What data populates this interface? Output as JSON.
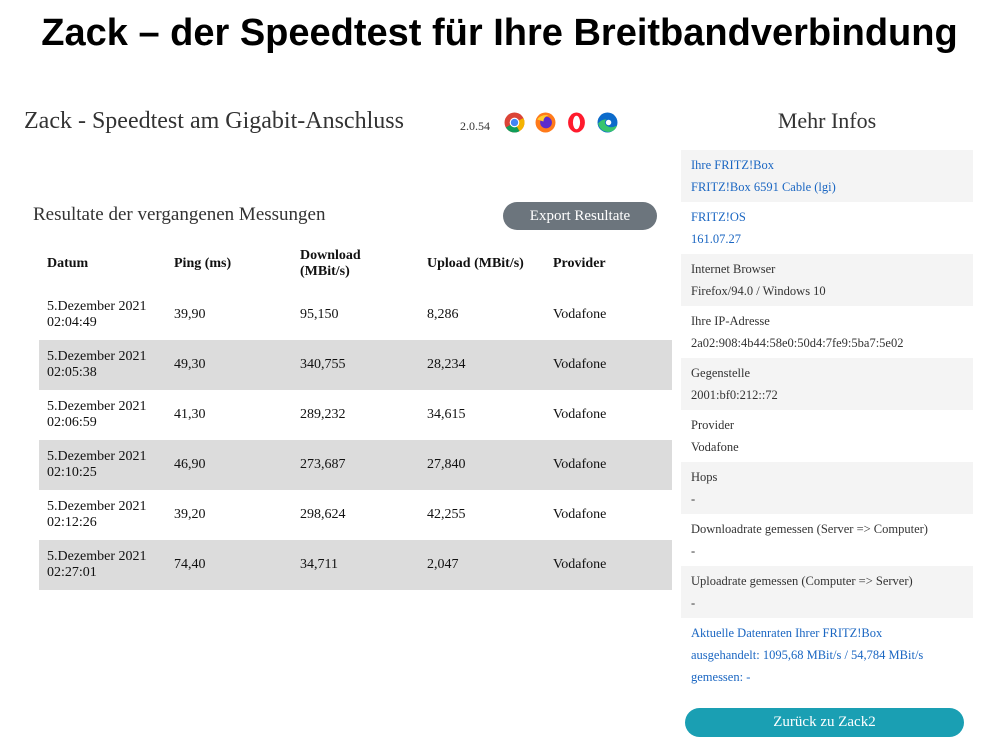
{
  "headline": "Zack – der Speedtest für Ihre Breitbandverbindung",
  "app": {
    "title": "Zack - Speedtest am Gigabit-Anschluss",
    "version": "2.0.54",
    "browser_icons": [
      "chrome-icon",
      "firefox-icon",
      "opera-icon",
      "edge-icon"
    ]
  },
  "results": {
    "title": "Resultate der vergangenen Messungen",
    "export_label": "Export Resultate",
    "columns": [
      "Datum",
      "Ping (ms)",
      "Download (MBit/s)",
      "Upload (MBit/s)",
      "Provider"
    ],
    "rows": [
      {
        "date": "5.Dezember 2021",
        "time": "02:04:49",
        "ping": "39,90",
        "download": "95,150",
        "upload": "8,286",
        "provider": "Vodafone"
      },
      {
        "date": "5.Dezember 2021",
        "time": "02:05:38",
        "ping": "49,30",
        "download": "340,755",
        "upload": "28,234",
        "provider": "Vodafone"
      },
      {
        "date": "5.Dezember 2021",
        "time": "02:06:59",
        "ping": "41,30",
        "download": "289,232",
        "upload": "34,615",
        "provider": "Vodafone"
      },
      {
        "date": "5.Dezember 2021",
        "time": "02:10:25",
        "ping": "46,90",
        "download": "273,687",
        "upload": "27,840",
        "provider": "Vodafone"
      },
      {
        "date": "5.Dezember 2021",
        "time": "02:12:26",
        "ping": "39,20",
        "download": "298,624",
        "upload": "42,255",
        "provider": "Vodafone"
      },
      {
        "date": "5.Dezember 2021",
        "time": "02:27:01",
        "ping": "74,40",
        "download": "34,711",
        "upload": "2,047",
        "provider": "Vodafone"
      }
    ]
  },
  "sidebar": {
    "title": "Mehr Infos",
    "items": [
      {
        "label": "Ihre FRITZ!Box",
        "value": "FRITZ!Box 6591 Cable (lgi)"
      },
      {
        "label": "FRITZ!OS",
        "value": "161.07.27"
      },
      {
        "label": "Internet Browser",
        "value": "Firefox/94.0 / Windows 10"
      },
      {
        "label": "Ihre IP-Adresse",
        "value": "2a02:908:4b44:58e0:50d4:7fe9:5ba7:5e02"
      },
      {
        "label": "Gegenstelle",
        "value": "2001:bf0:212::72"
      },
      {
        "label": "Provider",
        "value": "Vodafone"
      },
      {
        "label": "Hops",
        "value": "-"
      },
      {
        "label": "Downloadrate gemessen (Server => Computer)",
        "value": "-"
      },
      {
        "label": "Uploadrate gemessen (Computer => Server)",
        "value": "-"
      }
    ],
    "current_rates": {
      "title": "Aktuelle Datenraten Ihrer FRITZ!Box",
      "negotiated": "ausgehandelt: 1095,68 MBit/s / 54,784 MBit/s",
      "measured": "gemessen: -"
    },
    "back_label": "Zurück zu Zack2"
  },
  "colors": {
    "link": "#1a66c2",
    "export_button": "#6c757d",
    "back_button": "#1a9fb3",
    "row_stripe": "#dcdcdc"
  }
}
